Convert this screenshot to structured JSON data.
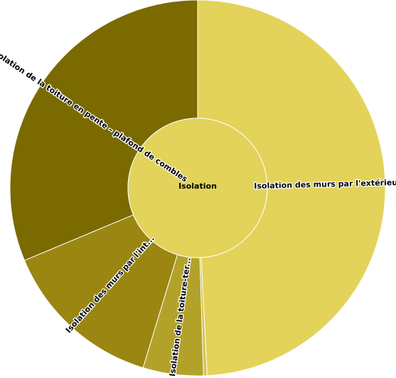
{
  "chart_data": {
    "type": "sunburst",
    "root": {
      "label": "Isolation",
      "color": "#e3d35a"
    },
    "slices": [
      {
        "label": "Isolation des murs par l'extérieur",
        "display": "Isolation des murs par l'extérieur",
        "value": 49.2,
        "color": "#e3d35a"
      },
      {
        "label": "",
        "display": "",
        "value": 0.3,
        "color": "#d2c24c"
      },
      {
        "label": "Isolation de la toiture-terrasse",
        "display": "Isolation de la toiture-ter...",
        "value": 5.2,
        "color": "#b3a22a"
      },
      {
        "label": "Isolation des murs par l'intérieur",
        "display": "Isolation des murs par l'int...",
        "value": 14.0,
        "color": "#9a8611"
      },
      {
        "label": "Isolation de la toiture en pente – plafond de combles",
        "display": "Isolation de la toiture en pente – plafond de combles",
        "value": 31.3,
        "color": "#7b6a00"
      }
    ]
  }
}
